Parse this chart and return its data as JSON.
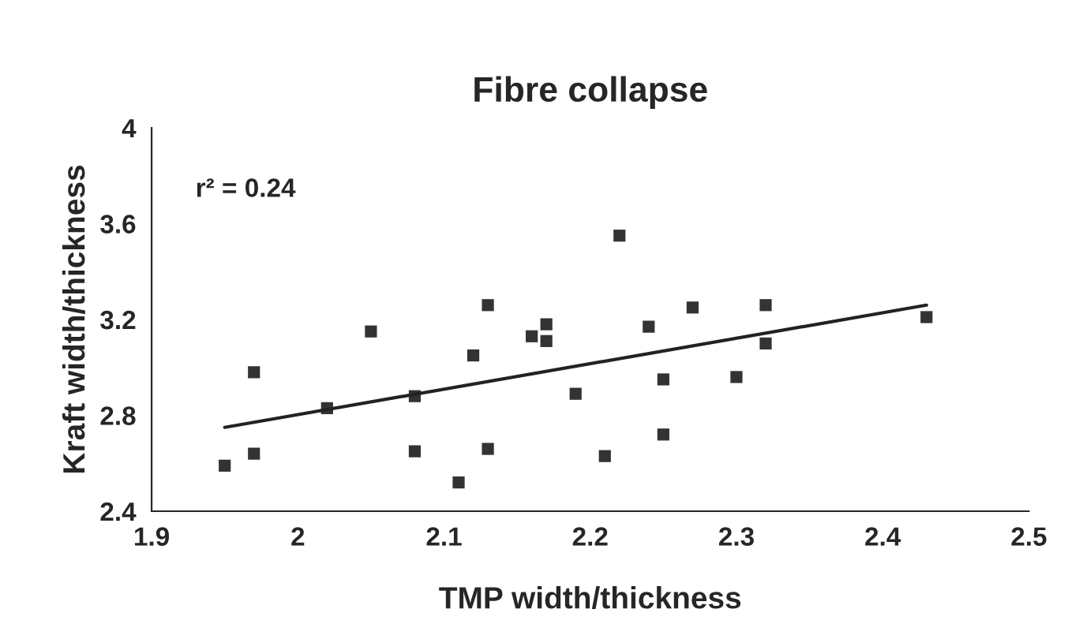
{
  "chart_data": {
    "type": "scatter",
    "title": "Fibre collapse",
    "xlabel": "TMP width/thickness",
    "ylabel": "Kraft width/thickness",
    "annotations": [
      "r² = 0.24"
    ],
    "series": [
      {
        "color": "#333333",
        "marker": "square",
        "x": [
          1.95,
          1.97,
          1.97,
          2.02,
          2.05,
          2.08,
          2.08,
          2.11,
          2.12,
          2.13,
          2.13,
          2.16,
          2.17,
          2.17,
          2.19,
          2.21,
          2.22,
          2.24,
          2.25,
          2.25,
          2.27,
          2.3,
          2.32,
          2.32,
          2.43
        ],
        "values": [
          2.59,
          2.98,
          2.64,
          2.83,
          3.15,
          2.88,
          2.65,
          2.52,
          3.05,
          3.26,
          2.66,
          3.13,
          3.18,
          3.11,
          2.89,
          2.63,
          3.55,
          3.17,
          2.95,
          2.72,
          3.25,
          2.96,
          3.26,
          3.1,
          3.21
        ]
      },
      {
        "type": "line",
        "color": "#222222",
        "marker": "none",
        "x": [
          1.95,
          2.43
        ],
        "values": [
          2.75,
          3.26
        ]
      }
    ],
    "xlim": [
      1.9,
      2.5
    ],
    "xticks": [
      1.9,
      2,
      2.1,
      2.2,
      2.3,
      2.4,
      2.5
    ],
    "ylim": [
      2.4,
      4
    ],
    "yticks": [
      2.4,
      2.8,
      3.2,
      3.6,
      4
    ],
    "grid": false,
    "legend": false
  }
}
